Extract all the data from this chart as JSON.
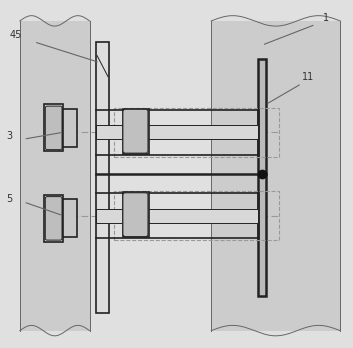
{
  "bg_color": "#e0e0e0",
  "line_color": "#666666",
  "dark_line": "#222222",
  "label_color": "#333333",
  "fig_width": 3.53,
  "fig_height": 3.48,
  "dpi": 100
}
